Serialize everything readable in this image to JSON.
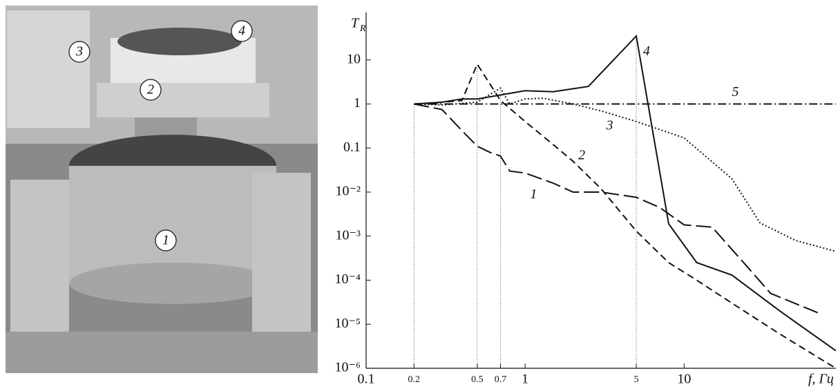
{
  "photo_labels": [
    "1",
    "2",
    "3",
    "4"
  ],
  "chart_data": {
    "type": "line",
    "y_label": {
      "main": "T",
      "sub": "R"
    },
    "x_label": "f, Гц",
    "log_x": true,
    "log_y": true,
    "xlim": [
      0.1,
      90
    ],
    "ylim": [
      1e-06,
      100
    ],
    "xticks": [
      0.1,
      0.2,
      0.5,
      0.7,
      1,
      5,
      10
    ],
    "yticks": [
      10,
      1,
      0.1,
      {
        "value": 0.01,
        "label": "10⁻²"
      },
      {
        "value": 0.001,
        "label": "10⁻³"
      },
      {
        "value": 0.0001,
        "label": "10⁻⁴"
      },
      {
        "value": 1e-05,
        "label": "10⁻⁵"
      },
      {
        "value": 1e-06,
        "label": "10⁻⁶"
      }
    ],
    "series": [
      {
        "name": "1",
        "color": "#111",
        "dash": "long-dashed",
        "x": [
          0.2,
          0.3,
          0.4,
          0.5,
          0.6,
          0.7,
          0.8,
          1,
          1.5,
          2,
          3,
          5,
          7,
          10,
          15,
          25,
          35,
          70
        ],
        "values": [
          1,
          0.75,
          0.25,
          0.11,
          0.08,
          0.066,
          0.03,
          0.027,
          0.016,
          0.01,
          0.01,
          0.0076,
          0.0045,
          0.0018,
          0.0016,
          0.0002,
          5e-05,
          1.8e-05
        ]
      },
      {
        "name": "2",
        "color": "#111",
        "dash": "dashed",
        "x": [
          0.2,
          0.3,
          0.4,
          0.5,
          0.7,
          1,
          1.5,
          2,
          3,
          5,
          8,
          12,
          20,
          40,
          90
        ],
        "values": [
          1,
          1.1,
          1.2,
          8,
          1.2,
          0.4,
          0.12,
          0.05,
          0.012,
          0.0013,
          0.00025,
          0.0001,
          3e-05,
          6e-06,
          1e-06
        ]
      },
      {
        "name": "3",
        "color": "#111",
        "dash": "dotted",
        "x": [
          0.2,
          0.3,
          0.5,
          0.7,
          0.8,
          1,
          1.3,
          2,
          3,
          5,
          10,
          20,
          30,
          50,
          90
        ],
        "values": [
          1,
          0.95,
          1.1,
          2.3,
          1,
          1.3,
          1.35,
          1,
          0.7,
          0.4,
          0.17,
          0.02,
          0.002,
          0.0008,
          0.00045
        ]
      },
      {
        "name": "4",
        "color": "#111",
        "dash": "solid",
        "x": [
          0.2,
          0.3,
          0.4,
          0.5,
          0.7,
          1,
          1.5,
          2.5,
          5,
          8,
          12,
          20,
          40,
          90
        ],
        "values": [
          1,
          1.1,
          1.3,
          1.3,
          1.6,
          2,
          1.9,
          2.5,
          35,
          0.0019,
          0.00025,
          0.00013,
          2e-05,
          2.5e-06
        ]
      },
      {
        "name": "5",
        "color": "#111",
        "dash": "dash-dot",
        "x": [
          0.2,
          90
        ],
        "values": [
          1,
          1
        ]
      }
    ]
  }
}
